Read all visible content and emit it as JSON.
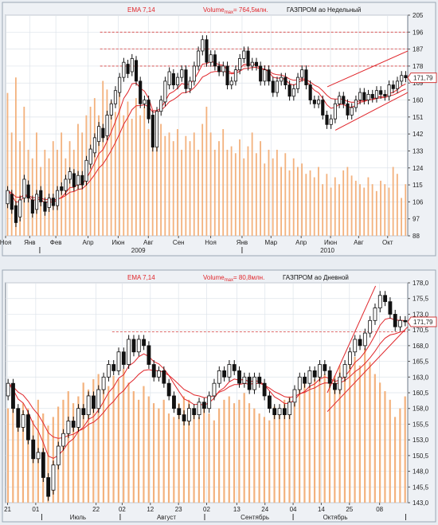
{
  "chart_data": [
    {
      "type": "candlestick",
      "indicator_label": "EMA 7,14",
      "volume_label_prefix": "Volume",
      "volume_label_sub": "max",
      "volume_label_value": "= 764,5млн.",
      "title": "ГАЗПРОМ ао Недельный",
      "last_price_label": "171,79",
      "last_price": 171.79,
      "ylim": [
        88,
        205
      ],
      "yticks": [
        {
          "value": 205,
          "label": "205"
        },
        {
          "value": 196,
          "label": "196"
        },
        {
          "value": 187,
          "label": "187"
        },
        {
          "value": 178,
          "label": "178"
        },
        {
          "value": 169,
          "label": "169"
        },
        {
          "value": 160,
          "label": "160"
        },
        {
          "value": 151,
          "label": "151"
        },
        {
          "value": 142,
          "label": "142"
        },
        {
          "value": 133,
          "label": "133"
        },
        {
          "value": 124,
          "label": "124"
        },
        {
          "value": 115,
          "label": "115"
        },
        {
          "value": 106,
          "label": "106"
        },
        {
          "value": 97,
          "label": "97"
        },
        {
          "value": 88,
          "label": "88"
        }
      ],
      "xticks": [
        {
          "x": 0,
          "label": "Ноя"
        },
        {
          "x": 0.06,
          "label": "Янв"
        },
        {
          "x": 0.125,
          "label": "Фев"
        },
        {
          "x": 0.205,
          "label": "Апр"
        },
        {
          "x": 0.28,
          "label": "Июн"
        },
        {
          "x": 0.355,
          "label": "Авг"
        },
        {
          "x": 0.43,
          "label": "Сен"
        },
        {
          "x": 0.51,
          "label": "Ноя"
        },
        {
          "x": 0.588,
          "label": "Янв"
        },
        {
          "x": 0.66,
          "label": "Мар"
        },
        {
          "x": 0.735,
          "label": "Апр"
        },
        {
          "x": 0.808,
          "label": "Июн"
        },
        {
          "x": 0.878,
          "label": "Авг"
        },
        {
          "x": 0.95,
          "label": "Окт"
        }
      ],
      "years": [
        {
          "x": 0.33,
          "label": "2009"
        },
        {
          "x": 0.8,
          "label": "2010"
        }
      ],
      "year_ticks": [
        0.085,
        0.588
      ],
      "hlines": [
        196,
        187,
        178
      ],
      "hlines_start": 0.235,
      "channel": [
        {
          "x1": 0.8,
          "y1": 167,
          "x2": 1.0,
          "y2": 186
        },
        {
          "x1": 0.82,
          "y1": 144,
          "x2": 1.0,
          "y2": 164
        }
      ],
      "candles": [
        [
          105,
          112
        ],
        [
          110,
          102
        ],
        [
          104,
          95
        ],
        [
          98,
          107
        ],
        [
          108,
          118
        ],
        [
          115,
          108
        ],
        [
          107,
          100
        ],
        [
          102,
          110
        ],
        [
          112,
          106
        ],
        [
          106,
          101
        ],
        [
          103,
          108
        ],
        [
          108,
          104
        ],
        [
          104,
          112
        ],
        [
          114,
          112
        ],
        [
          112,
          118
        ],
        [
          118,
          122
        ],
        [
          121,
          114
        ],
        [
          115,
          120
        ],
        [
          120,
          115
        ],
        [
          117,
          128
        ],
        [
          126,
          134
        ],
        [
          132,
          140
        ],
        [
          138,
          146
        ],
        [
          145,
          140
        ],
        [
          141,
          152
        ],
        [
          152,
          158
        ],
        [
          158,
          165
        ],
        [
          164,
          172
        ],
        [
          172,
          180
        ],
        [
          179,
          174
        ],
        [
          175,
          182
        ],
        [
          181,
          170
        ],
        [
          170,
          158
        ],
        [
          158,
          160
        ],
        [
          160,
          150
        ],
        [
          152,
          135
        ],
        [
          135,
          154
        ],
        [
          154,
          160
        ],
        [
          159,
          170
        ],
        [
          168,
          175
        ],
        [
          174,
          168
        ],
        [
          168,
          172
        ],
        [
          172,
          176
        ],
        [
          176,
          166
        ],
        [
          166,
          170
        ],
        [
          170,
          178
        ],
        [
          178,
          186
        ],
        [
          186,
          192
        ],
        [
          192,
          180
        ],
        [
          180,
          184
        ],
        [
          184,
          178
        ],
        [
          178,
          175
        ],
        [
          175,
          178
        ],
        [
          178,
          168
        ],
        [
          168,
          170
        ],
        [
          170,
          176
        ],
        [
          176,
          182
        ],
        [
          182,
          186
        ],
        [
          186,
          178
        ],
        [
          178,
          180
        ],
        [
          180,
          178
        ],
        [
          178,
          170
        ],
        [
          170,
          176
        ],
        [
          176,
          170
        ],
        [
          170,
          164
        ],
        [
          164,
          170
        ],
        [
          170,
          172
        ],
        [
          172,
          168
        ],
        [
          168,
          162
        ],
        [
          162,
          166
        ],
        [
          166,
          172
        ],
        [
          172,
          176
        ],
        [
          176,
          168
        ],
        [
          168,
          160
        ],
        [
          160,
          158
        ],
        [
          158,
          160
        ],
        [
          160,
          152
        ],
        [
          152,
          147
        ],
        [
          147,
          150
        ],
        [
          150,
          158
        ],
        [
          158,
          162
        ],
        [
          162,
          158
        ],
        [
          158,
          152
        ],
        [
          152,
          156
        ],
        [
          156,
          160
        ],
        [
          160,
          164
        ],
        [
          164,
          160
        ],
        [
          160,
          163
        ],
        [
          163,
          161
        ],
        [
          161,
          165
        ],
        [
          165,
          163
        ],
        [
          163,
          162
        ],
        [
          162,
          168
        ],
        [
          168,
          166
        ],
        [
          166,
          170
        ],
        [
          170,
          173
        ],
        [
          173,
          171.79
        ]
      ],
      "volumes": [
        0.83,
        0.6,
        0.92,
        0.55,
        0.75,
        0.5,
        0.45,
        0.6,
        0.4,
        0.5,
        0.45,
        0.55,
        0.5,
        0.6,
        0.45,
        0.55,
        0.5,
        0.65,
        0.6,
        0.7,
        0.75,
        0.8,
        0.7,
        0.9,
        0.85,
        0.78,
        0.72,
        0.88,
        0.7,
        0.78,
        0.68,
        0.8,
        0.7,
        0.75,
        0.62,
        0.7,
        0.6,
        0.65,
        0.58,
        0.6,
        0.55,
        0.62,
        0.5,
        0.58,
        0.55,
        0.6,
        0.5,
        0.65,
        0.75,
        0.6,
        0.5,
        0.55,
        0.62,
        0.5,
        0.52,
        0.48,
        0.56,
        0.45,
        0.52,
        0.6,
        0.48,
        0.55,
        0.42,
        0.5,
        0.45,
        0.5,
        0.4,
        0.48,
        0.38,
        0.45,
        0.4,
        0.42,
        0.36,
        0.38,
        0.34,
        0.4,
        0.3,
        0.36,
        0.28,
        0.34,
        0.3,
        0.38,
        0.4,
        0.35,
        0.32,
        0.3,
        0.28,
        0.34,
        0.3,
        0.26,
        0.32,
        0.3,
        0.28,
        0.4,
        0.36,
        0.22,
        0.3
      ]
    },
    {
      "type": "candlestick",
      "indicator_label": "EMA 7,14",
      "volume_label_prefix": "Volume",
      "volume_label_sub": "max",
      "volume_label_value": "= 80,8млн.",
      "title": "ГАЗПРОМ ао Дневной",
      "last_price_label": "171,79",
      "last_price": 171.79,
      "ylim": [
        143,
        178
      ],
      "yticks": [
        {
          "value": 178,
          "label": "178,0"
        },
        {
          "value": 175.5,
          "label": "175,5"
        },
        {
          "value": 173,
          "label": "173,0"
        },
        {
          "value": 170.5,
          "label": "170,5"
        },
        {
          "value": 168,
          "label": "168,0"
        },
        {
          "value": 165.5,
          "label": "165,5"
        },
        {
          "value": 163,
          "label": "163,0"
        },
        {
          "value": 160.5,
          "label": "160,5"
        },
        {
          "value": 158,
          "label": "158,0"
        },
        {
          "value": 155.5,
          "label": "155,5"
        },
        {
          "value": 153,
          "label": "153,0"
        },
        {
          "value": 150.5,
          "label": "150,5"
        },
        {
          "value": 148,
          "label": "148,0"
        },
        {
          "value": 145.5,
          "label": "145,5"
        },
        {
          "value": 143,
          "label": "143,0"
        }
      ],
      "xticks": [
        {
          "x": 0.005,
          "label": "21"
        },
        {
          "x": 0.075,
          "label": "01"
        },
        {
          "x": 0.225,
          "label": "22"
        },
        {
          "x": 0.29,
          "label": "02"
        },
        {
          "x": 0.36,
          "label": "12"
        },
        {
          "x": 0.43,
          "label": "23"
        },
        {
          "x": 0.5,
          "label": "02"
        },
        {
          "x": 0.575,
          "label": "13"
        },
        {
          "x": 0.645,
          "label": "24"
        },
        {
          "x": 0.715,
          "label": "04"
        },
        {
          "x": 0.785,
          "label": "14"
        },
        {
          "x": 0.855,
          "label": "25"
        },
        {
          "x": 0.93,
          "label": "08"
        }
      ],
      "months": [
        {
          "x": 0.18,
          "label": "Июль"
        },
        {
          "x": 0.4,
          "label": "Август"
        },
        {
          "x": 0.62,
          "label": "Сентябрь"
        },
        {
          "x": 0.82,
          "label": "Октябрь"
        }
      ],
      "month_ticks": [
        0.09,
        0.285,
        0.495,
        0.715,
        0.995
      ],
      "hlines": [
        170.2
      ],
      "hlines_start": 0.265,
      "channel": [
        {
          "x1": 0.8,
          "y1": 160.5,
          "x2": 0.92,
          "y2": 177.5
        },
        {
          "x1": 0.8,
          "y1": 157.5,
          "x2": 1.0,
          "y2": 171
        }
      ],
      "candles": [
        [
          160,
          162
        ],
        [
          162,
          158
        ],
        [
          158,
          155
        ],
        [
          155,
          157
        ],
        [
          157,
          153
        ],
        [
          153,
          150
        ],
        [
          150,
          151
        ],
        [
          151,
          147
        ],
        [
          147,
          144
        ],
        [
          145,
          149
        ],
        [
          149,
          152
        ],
        [
          152,
          154
        ],
        [
          154,
          156
        ],
        [
          156,
          155
        ],
        [
          155,
          158
        ],
        [
          158,
          157
        ],
        [
          157,
          160
        ],
        [
          160,
          158
        ],
        [
          158,
          161
        ],
        [
          161,
          163
        ],
        [
          163,
          165
        ],
        [
          165,
          164
        ],
        [
          164,
          167
        ],
        [
          167,
          165
        ],
        [
          165,
          169
        ],
        [
          169,
          167
        ],
        [
          167,
          169
        ],
        [
          169,
          168
        ],
        [
          168,
          165
        ],
        [
          165,
          163
        ],
        [
          163,
          164
        ],
        [
          164,
          162
        ],
        [
          162,
          160
        ],
        [
          160,
          158
        ],
        [
          158,
          157
        ],
        [
          157,
          156
        ],
        [
          156,
          158
        ],
        [
          158,
          157
        ],
        [
          157,
          159
        ],
        [
          159,
          158
        ],
        [
          158,
          160
        ],
        [
          160,
          162
        ],
        [
          162,
          164
        ],
        [
          164,
          163
        ],
        [
          163,
          165
        ],
        [
          165,
          164
        ],
        [
          164,
          162
        ],
        [
          162,
          163
        ],
        [
          163,
          161
        ],
        [
          161,
          163
        ],
        [
          163,
          162
        ],
        [
          162,
          160
        ],
        [
          160,
          158
        ],
        [
          158,
          157
        ],
        [
          157,
          158
        ],
        [
          158,
          157
        ],
        [
          157,
          159
        ],
        [
          159,
          161
        ],
        [
          161,
          163
        ],
        [
          163,
          162
        ],
        [
          162,
          164
        ],
        [
          164,
          163
        ],
        [
          163,
          165
        ],
        [
          165,
          164
        ],
        [
          164,
          162
        ],
        [
          162,
          161
        ],
        [
          161,
          163
        ],
        [
          163,
          165
        ],
        [
          165,
          167
        ],
        [
          167,
          169
        ],
        [
          169,
          168
        ],
        [
          168,
          170
        ],
        [
          170,
          172
        ],
        [
          172,
          174
        ],
        [
          174,
          176
        ],
        [
          176,
          175
        ],
        [
          175,
          173
        ],
        [
          173,
          171
        ],
        [
          171,
          172
        ],
        [
          172,
          171.79
        ]
      ],
      "volumes": [
        0.55,
        0.62,
        0.5,
        0.58,
        0.55,
        0.48,
        0.6,
        0.52,
        0.45,
        0.5,
        0.56,
        0.6,
        0.65,
        0.58,
        0.62,
        0.7,
        0.66,
        0.72,
        0.75,
        0.7,
        0.68,
        0.74,
        0.72,
        0.78,
        0.7,
        0.65,
        0.6,
        0.68,
        0.62,
        0.58,
        0.55,
        0.6,
        0.52,
        0.5,
        0.58,
        0.62,
        0.6,
        0.54,
        0.5,
        0.56,
        0.52,
        0.48,
        0.55,
        0.6,
        0.62,
        0.58,
        0.6,
        0.64,
        0.58,
        0.55,
        0.52,
        0.5,
        0.48,
        0.56,
        0.52,
        0.6,
        0.62,
        0.58,
        0.66,
        0.7,
        0.68,
        0.72,
        0.78,
        0.75,
        0.7,
        0.74,
        0.8,
        0.78,
        0.82,
        0.85,
        0.8,
        0.9,
        0.82,
        0.75,
        0.7,
        0.65,
        0.6,
        0.5,
        0.55,
        0.62
      ]
    }
  ]
}
